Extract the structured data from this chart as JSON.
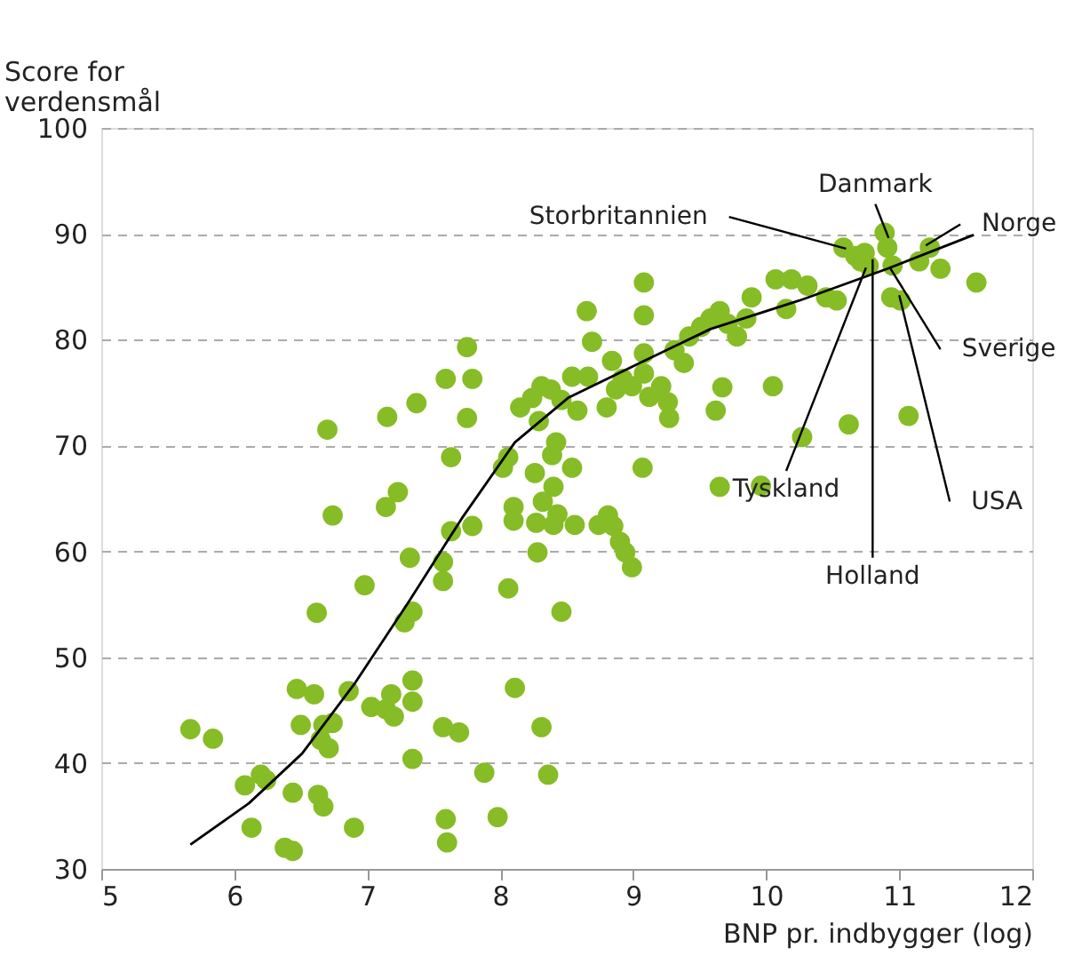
{
  "chart_data": {
    "type": "scatter",
    "xlabel": "BNP pr. indbygger (log)",
    "ylabel": "Score for verdensmål",
    "xlim": [
      5,
      12
    ],
    "ylim": [
      30,
      100
    ],
    "xticks": [
      5,
      6,
      7,
      8,
      9,
      10,
      11,
      12
    ],
    "yticks": [
      30,
      40,
      50,
      60,
      70,
      80,
      90,
      100
    ],
    "grid": "y",
    "marker": "circle",
    "series": [
      {
        "color": "#86bc25",
        "x": [
          5.67,
          5.84,
          6.08,
          6.2,
          6.24,
          6.13,
          6.44,
          6.38,
          6.44,
          6.63,
          6.5,
          6.47,
          6.6,
          6.67,
          6.71,
          6.65,
          6.74,
          6.67,
          6.9,
          6.86,
          6.98,
          6.62,
          6.74,
          6.7,
          7.03,
          7.14,
          7.2,
          7.18,
          7.34,
          7.34,
          7.34,
          7.28,
          7.34,
          7.23,
          7.32,
          7.14,
          7.15,
          7.37,
          7.57,
          7.69,
          7.59,
          7.6,
          7.57,
          7.57,
          7.63,
          7.79,
          7.75,
          7.59,
          7.79,
          7.75,
          7.63,
          7.88,
          7.98,
          8.36,
          8.31,
          8.11,
          8.06,
          8.02,
          8.06,
          8.1,
          8.1,
          8.27,
          8.4,
          8.43,
          8.46,
          8.56,
          8.74,
          8.81,
          8.85,
          8.9,
          8.94,
          8.99,
          8.28,
          8.32,
          8.26,
          8.4,
          8.39,
          8.42,
          8.54,
          9.07,
          8.15,
          8.24,
          8.31,
          8.38,
          8.29,
          8.46,
          8.54,
          8.58,
          8.66,
          8.69,
          8.65,
          8.8,
          8.84,
          8.87,
          8.92,
          8.99,
          9.08,
          9.08,
          9.12,
          9.08,
          9.08,
          9.21,
          9.26,
          9.27,
          9.31,
          9.38,
          9.42,
          9.51,
          9.58,
          9.65,
          9.71,
          9.78,
          9.85,
          9.67,
          9.62,
          9.65,
          9.96,
          10.05,
          9.89,
          10.07,
          10.15,
          10.19,
          10.31,
          10.45,
          10.27,
          10.62,
          10.53,
          10.58,
          10.67,
          10.71,
          10.77,
          10.74,
          10.89,
          10.91,
          10.95,
          10.94,
          11.01,
          11.07,
          11.15,
          11.23,
          11.31,
          11.58
        ],
        "values": [
          43.2,
          42.3,
          37.9,
          38.9,
          38.4,
          33.9,
          37.2,
          32,
          31.7,
          37,
          43.6,
          47,
          46.5,
          43.6,
          41.4,
          42.2,
          43.8,
          35.9,
          33.9,
          46.8,
          56.8,
          54.2,
          63.4,
          71.5,
          45.3,
          45.1,
          44.4,
          46.5,
          45.8,
          47.8,
          40.4,
          53.3,
          54.3,
          65.6,
          59.4,
          64.2,
          72.7,
          74,
          43.4,
          42.9,
          34.7,
          32.5,
          59,
          57.2,
          61.9,
          62.4,
          72.6,
          76.3,
          76.3,
          79.3,
          68.9,
          39.1,
          34.9,
          38.9,
          43.4,
          47.1,
          56.5,
          67.9,
          68.9,
          64.2,
          62.9,
          62.7,
          62.5,
          63.5,
          54.3,
          62.5,
          62.5,
          63.4,
          62.4,
          60.9,
          59.9,
          58.5,
          59.9,
          64.7,
          67.4,
          66.1,
          69.1,
          70.3,
          67.9,
          67.9,
          73.6,
          74.5,
          75.6,
          75.3,
          72.3,
          74.3,
          76.5,
          73.3,
          76.5,
          79.8,
          82.7,
          73.6,
          78,
          75.3,
          76.3,
          75.6,
          76.8,
          78.7,
          74.6,
          82.3,
          85.4,
          75.6,
          74.1,
          72.6,
          79,
          77.8,
          80.3,
          81.2,
          82,
          82.7,
          81.5,
          80.3,
          82,
          75.5,
          73.3,
          66.1,
          66.2,
          75.6,
          84,
          85.7,
          82.9,
          85.7,
          85.1,
          84,
          70.8,
          72,
          83.7,
          88.7,
          87.9,
          87.4,
          87,
          88.2,
          90.1,
          88.7,
          87,
          84,
          83.7,
          72.8,
          87.4,
          88.7,
          86.7,
          85.4
        ]
      },
      {
        "type": "line",
        "color": "#000000",
        "marker": "none",
        "line_style": "solid",
        "x": [
          5.67,
          6.11,
          6.51,
          6.91,
          7.31,
          7.71,
          8.11,
          8.51,
          9.05,
          9.58,
          10.25,
          10.91,
          11.56
        ],
        "values": [
          32.3,
          36.2,
          40.9,
          47.6,
          55.2,
          63.1,
          70.3,
          74.5,
          77.8,
          81,
          83.7,
          86.7,
          89.9
        ]
      }
    ],
    "annotations": [
      {
        "text": "Storbritannien",
        "x": 10.6,
        "y": 88.6
      },
      {
        "text": "Danmark",
        "x": 10.92,
        "y": 89.6
      },
      {
        "text": "Norge",
        "x": 11.2,
        "y": 88.9
      },
      {
        "text": "Sverige",
        "x": 10.93,
        "y": 86.8
      },
      {
        "text": "USA",
        "x": 11.0,
        "y": 84.2
      },
      {
        "text": "Tyskland",
        "x": 10.75,
        "y": 86.8
      },
      {
        "text": "Holland",
        "x": 10.8,
        "y": 87.6
      }
    ]
  }
}
